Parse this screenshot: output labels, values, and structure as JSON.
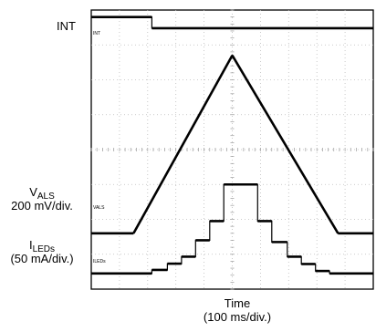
{
  "labels": {
    "int": "INT",
    "vals_main": "V",
    "vals_sub": "ALS",
    "vals_scale": "200 mV/div.",
    "iled_main": "I",
    "iled_sub": "LEDs",
    "iled_scale": "(50 mA/div.)",
    "time": "Time",
    "time_scale": "(100 ms/div.)"
  },
  "trace_tags": {
    "int": "INT",
    "vals": "VALS",
    "iled": "ILEDs"
  },
  "chart_data": {
    "type": "line",
    "title": "",
    "xlabel": "Time (100 ms/div.)",
    "grid": true,
    "grid_divisions": {
      "x": 10,
      "y": 8
    },
    "xlim": [
      0,
      10
    ],
    "ylim": [
      0,
      8
    ],
    "series": [
      {
        "name": "INT",
        "x": [
          0,
          2.15,
          2.15,
          10
        ],
        "y": [
          7.8,
          7.8,
          7.48,
          7.48
        ]
      },
      {
        "name": "VALS",
        "x": [
          0,
          1.5,
          5.0,
          8.75,
          10
        ],
        "y": [
          1.6,
          1.6,
          6.7,
          1.6,
          1.6
        ]
      },
      {
        "name": "ILEDs",
        "x": [
          0,
          2.15,
          2.15,
          2.7,
          2.7,
          3.2,
          3.2,
          3.7,
          3.7,
          4.2,
          4.2,
          4.7,
          4.7,
          5.9,
          5.9,
          6.4,
          6.4,
          6.95,
          6.95,
          7.45,
          7.45,
          7.95,
          7.95,
          8.45,
          8.45,
          10
        ],
        "y": [
          0.45,
          0.45,
          0.55,
          0.55,
          0.73,
          0.73,
          0.93,
          0.93,
          1.4,
          1.4,
          1.95,
          1.95,
          3.0,
          3.0,
          1.95,
          1.95,
          1.35,
          1.35,
          0.93,
          0.93,
          0.72,
          0.72,
          0.52,
          0.52,
          0.45,
          0.45
        ]
      }
    ]
  }
}
